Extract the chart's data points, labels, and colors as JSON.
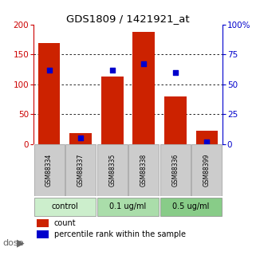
{
  "title": "GDS1809 / 1421921_at",
  "samples": [
    "GSM88334",
    "GSM88337",
    "GSM88335",
    "GSM88338",
    "GSM88336",
    "GSM88399"
  ],
  "red_values": [
    170,
    18,
    113,
    188,
    80,
    23
  ],
  "blue_percentile": [
    62,
    5,
    62,
    67,
    60,
    2
  ],
  "groups": [
    {
      "label": "control",
      "cols": [
        0,
        1
      ],
      "color": "#cceecc"
    },
    {
      "label": "0.1 ug/ml",
      "cols": [
        2,
        3
      ],
      "color": "#aaddaa"
    },
    {
      "label": "0.5 ug/ml",
      "cols": [
        4,
        5
      ],
      "color": "#88cc88"
    }
  ],
  "ylim_left": [
    0,
    200
  ],
  "ylim_right": [
    0,
    100
  ],
  "yticks_left": [
    0,
    50,
    100,
    150,
    200
  ],
  "yticks_right": [
    0,
    25,
    50,
    75,
    100
  ],
  "yticklabels_right": [
    "0",
    "25",
    "50",
    "75",
    "100%"
  ],
  "left_axis_color": "#cc0000",
  "right_axis_color": "#0000cc",
  "bar_color": "#cc2200",
  "dot_color": "#0000cc",
  "bg_color": "#ffffff",
  "plot_bg": "#ffffff",
  "sample_bg": "#cccccc",
  "dose_text_color": "#666666"
}
